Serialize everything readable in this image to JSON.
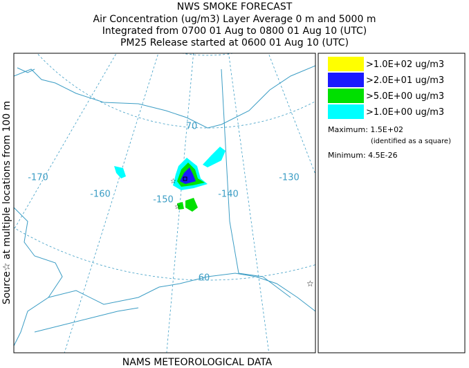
{
  "header": {
    "title": "NWS SMOKE FORECAST",
    "lines": [
      "Air Concentration (ug/m3) Layer Average    0 m and  5000 m",
      "Integrated from 0700 01 Aug to 0800 01 Aug 10 (UTC)",
      "PM25 Release started at 0600 01 Aug 10 (UTC)"
    ]
  },
  "side_label": "Source☆ at multiple locations from  100 m",
  "footer": "NAMS METEOROLOGICAL DATA",
  "map": {
    "graticule_labels": [
      "-170",
      "-160",
      "-150",
      "-140",
      "-130",
      "70",
      "60"
    ]
  },
  "legend": {
    "items": [
      {
        "label": ">1.0E+02 ug/m3",
        "color": "#ffff00"
      },
      {
        "label": ">2.0E+01 ug/m3",
        "color": "#1a1aff"
      },
      {
        "label": ">5.0E+00 ug/m3",
        "color": "#00e000"
      },
      {
        "label": ">1.0E+00 ug/m3",
        "color": "#00ffff"
      }
    ],
    "maximum": "Maximum: 1.5E+02",
    "maximum_note": "(identified as a square)",
    "minimum": "Minimum: 4.5E-26"
  }
}
